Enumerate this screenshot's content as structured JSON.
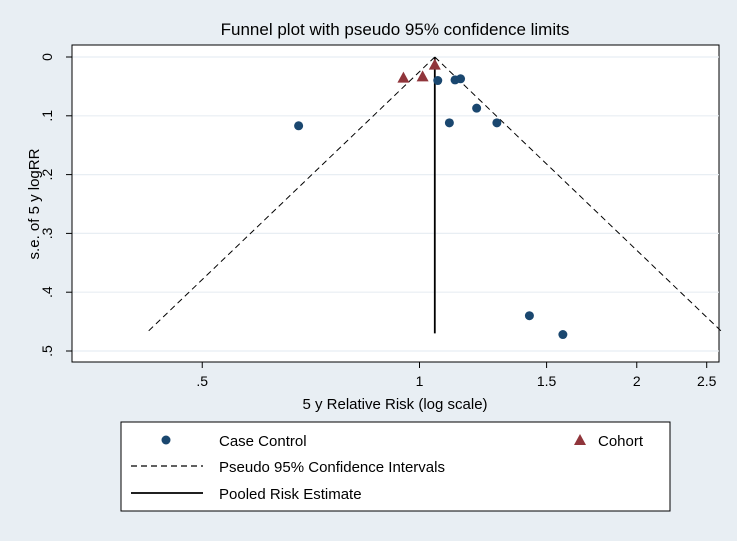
{
  "chart_data": {
    "type": "scatter",
    "title": "Funnel plot with pseudo 95% confidence limits",
    "xlabel": "5 y Relative Risk (log scale)",
    "ylabel": "s.e. of 5 y logRR",
    "x_scale": "log",
    "xlim": [
      0.33,
      2.6
    ],
    "ylim": [
      0.5,
      0
    ],
    "x_ticks": [
      {
        "value": 0.5,
        "label": ".5"
      },
      {
        "value": 1,
        "label": "1"
      },
      {
        "value": 1.5,
        "label": "1.5"
      },
      {
        "value": 2,
        "label": "2"
      },
      {
        "value": 2.5,
        "label": "2.5"
      }
    ],
    "y_ticks": [
      {
        "value": 0,
        "label": "0"
      },
      {
        "value": 0.1,
        "label": ".1"
      },
      {
        "value": 0.2,
        "label": ".2"
      },
      {
        "value": 0.3,
        "label": ".3"
      },
      {
        "value": 0.4,
        "label": ".4"
      },
      {
        "value": 0.5,
        "label": ".5"
      }
    ],
    "grid": true,
    "pooled_estimate": 1.05,
    "pooled_line_ymax": 0.47,
    "ci_z": 1.96,
    "ci_se_max": 0.47,
    "series": [
      {
        "name": "Case Control",
        "marker": "circle",
        "color": "#1a476f",
        "points": [
          {
            "x": 0.68,
            "y": 0.117
          },
          {
            "x": 1.06,
            "y": 0.04
          },
          {
            "x": 1.12,
            "y": 0.039
          },
          {
            "x": 1.14,
            "y": 0.037
          },
          {
            "x": 1.2,
            "y": 0.087
          },
          {
            "x": 1.1,
            "y": 0.112
          },
          {
            "x": 1.28,
            "y": 0.112
          },
          {
            "x": 1.42,
            "y": 0.44
          },
          {
            "x": 1.58,
            "y": 0.472
          }
        ]
      },
      {
        "name": "Cohort",
        "marker": "triangle",
        "color": "#90353b",
        "points": [
          {
            "x": 0.95,
            "y": 0.035
          },
          {
            "x": 1.01,
            "y": 0.033
          },
          {
            "x": 1.05,
            "y": 0.013
          }
        ]
      }
    ],
    "legend": {
      "placement": "bottom",
      "entries": [
        {
          "label": "Case Control",
          "symbol": "circle"
        },
        {
          "label": "Cohort",
          "symbol": "triangle"
        },
        {
          "label": "Pseudo 95% Confidence Intervals",
          "symbol": "dashed-line"
        },
        {
          "label": "Pooled Risk Estimate",
          "symbol": "solid-line"
        }
      ]
    }
  }
}
